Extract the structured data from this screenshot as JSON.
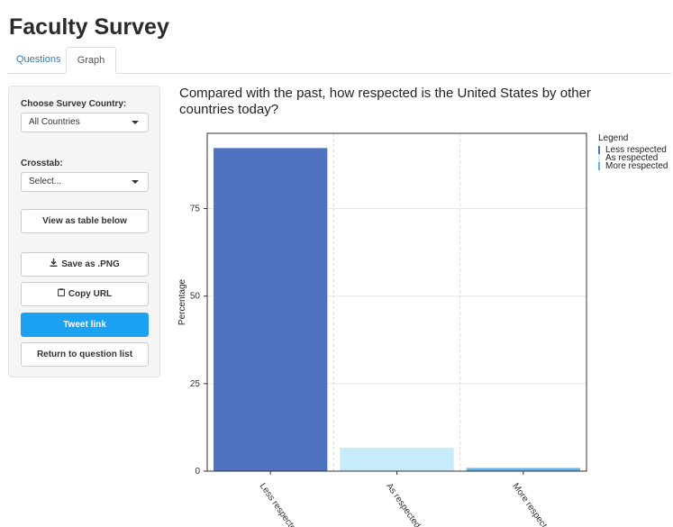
{
  "page": {
    "title": "Faculty Survey"
  },
  "tabs": [
    {
      "label": "Questions",
      "active": false
    },
    {
      "label": "Graph",
      "active": true
    }
  ],
  "sidebar": {
    "country_label": "Choose Survey Country:",
    "country_value": "All Countries",
    "crosstab_label": "Crosstab:",
    "crosstab_value": "Select...",
    "view_table_label": "View as table below",
    "save_png_label": "Save as .PNG",
    "copy_url_label": "Copy URL",
    "tweet_label": "Tweet link",
    "return_label": "Return to question list"
  },
  "question": {
    "title": "Compared with the past, how respected is the United States by other countries today?"
  },
  "legend": {
    "title": "Legend",
    "items": [
      {
        "label": "Less respected",
        "color": "#4f72c0"
      },
      {
        "label": "As respected",
        "color": "#c6ebfb"
      },
      {
        "label": "More respected",
        "color": "#63b4e6"
      }
    ]
  },
  "colors": {
    "accent": "#1da1f2",
    "link": "#337ab7"
  },
  "chart_data": {
    "type": "bar",
    "categories": [
      "Less respected",
      "As respected",
      "More respected"
    ],
    "values": [
      92.3,
      6.7,
      0.9
    ],
    "bar_colors": [
      "#4f72c0",
      "#c6ebfb",
      "#63b4e6"
    ],
    "ylabel": "Percentage",
    "xlabel": "",
    "yticks": [
      0,
      25,
      50,
      75
    ],
    "ylim": [
      0,
      96.5
    ],
    "grid": true,
    "legend_position": "right"
  }
}
